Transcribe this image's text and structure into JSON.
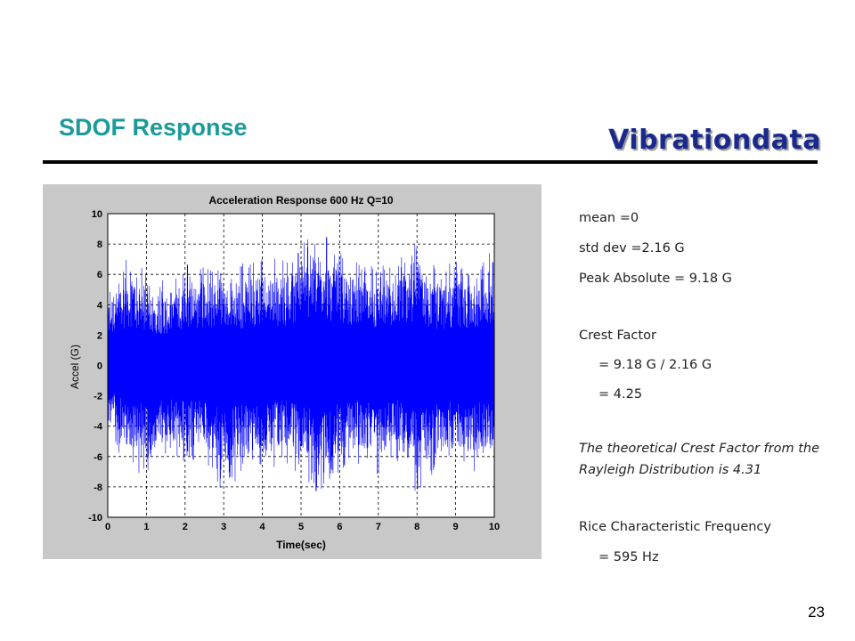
{
  "slide": {
    "title": "SDOF Response",
    "brand": "Vibrationdata",
    "page_number": "23"
  },
  "notes": {
    "mean": "mean =0",
    "std_dev": "std dev =2.16 G",
    "peak": "Peak Absolute = 9.18 G",
    "crest_label": "Crest Factor",
    "crest_eq1": "= 9.18 G / 2.16 G",
    "crest_eq2": "= 4.25",
    "theory": "The theoretical Crest Factor from the Rayleigh Distribution is 4.31",
    "rice_label": "Rice Characteristic Frequency",
    "rice_value": "=  595 Hz"
  },
  "chart_data": {
    "type": "line",
    "title": "Acceleration Response 600 Hz  Q=10",
    "xlabel": "Time(sec)",
    "ylabel": "Accel (G)",
    "xlim": [
      0,
      10
    ],
    "ylim": [
      -10,
      10
    ],
    "xticks": [
      "0",
      "1",
      "2",
      "3",
      "4",
      "5",
      "6",
      "7",
      "8",
      "9",
      "10"
    ],
    "yticks": [
      "10",
      "8",
      "6",
      "4",
      "2",
      "0",
      "-2",
      "-4",
      "-6",
      "-8",
      "-10"
    ],
    "grid": true,
    "series": [
      {
        "color": "#0000ff",
        "envelope": {
          "x": [
            0,
            0.5,
            1,
            1.5,
            2,
            2.5,
            3,
            3.5,
            4,
            4.5,
            5,
            5.5,
            6,
            6.5,
            7,
            7.5,
            8,
            8.5,
            9,
            9.5,
            10
          ],
          "upper": [
            5.2,
            7.2,
            6.2,
            5.8,
            6.8,
            6.6,
            7.0,
            6.8,
            7.8,
            7.2,
            8.4,
            9.2,
            7.6,
            7.0,
            6.6,
            7.0,
            8.6,
            6.4,
            7.0,
            6.6,
            8.0
          ],
          "lower": [
            -4.8,
            -6.6,
            -7.4,
            -6.2,
            -6.6,
            -6.4,
            -8.6,
            -7.2,
            -7.6,
            -6.4,
            -7.2,
            -8.9,
            -7.0,
            -6.6,
            -7.4,
            -6.4,
            -9.0,
            -6.8,
            -7.0,
            -7.0,
            -6.8
          ]
        },
        "std": 2.16,
        "peak_absolute": 9.18
      }
    ]
  }
}
